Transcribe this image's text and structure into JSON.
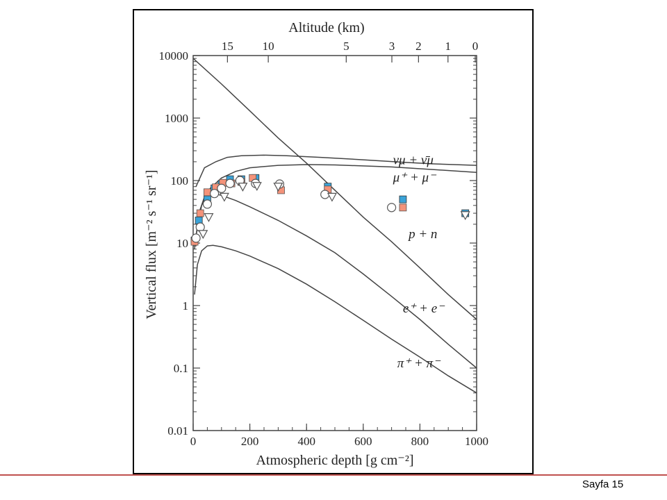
{
  "slide": {
    "page_label": "Sayfa 15",
    "colors": {
      "footer_line": "#c0504d",
      "blue_marker": "#3aa3d8",
      "salmon_marker": "#f4937a"
    }
  },
  "chart_data": {
    "type": "line",
    "title": "",
    "xlabel": "Atmospheric depth [g cm⁻²]",
    "x2label": "Altitude (km)",
    "ylabel": "Vertical flux [m⁻² s⁻¹ sr⁻¹]",
    "xlim": [
      0,
      1000
    ],
    "ylim": [
      0.01,
      10000
    ],
    "yscale": "log",
    "x_ticks": [
      0,
      200,
      400,
      600,
      800,
      1000
    ],
    "y_ticks": [
      {
        "v": 10000,
        "label": "10000"
      },
      {
        "v": 1000,
        "label": "1000"
      },
      {
        "v": 100,
        "label": "100"
      },
      {
        "v": 10,
        "label": "10"
      },
      {
        "v": 1,
        "label": "1"
      },
      {
        "v": 0.1,
        "label": "0.1"
      },
      {
        "v": 0.01,
        "label": "0.01"
      }
    ],
    "altitude_ticks": [
      {
        "label": "15",
        "depth": 121
      },
      {
        "label": "10",
        "depth": 265
      },
      {
        "label": "5",
        "depth": 540
      },
      {
        "label": "3",
        "depth": 701
      },
      {
        "label": "2",
        "depth": 795
      },
      {
        "label": "1",
        "depth": 899
      },
      {
        "label": "0",
        "depth": 1030
      }
    ],
    "series": [
      {
        "name": "νμ + ν̄μ",
        "x": [
          10,
          40,
          80,
          120,
          170,
          250,
          330,
          450,
          600,
          750,
          850,
          1000
        ],
        "y": [
          80,
          160,
          200,
          235,
          250,
          255,
          250,
          235,
          215,
          195,
          185,
          175
        ]
      },
      {
        "name": "μ⁺ + μ⁻",
        "x": [
          5,
          30,
          60,
          100,
          150,
          200,
          300,
          400,
          500,
          700,
          850,
          1000
        ],
        "y": [
          10,
          40,
          75,
          110,
          140,
          160,
          175,
          180,
          178,
          165,
          150,
          135
        ]
      },
      {
        "name": "p + n",
        "x": [
          0,
          100,
          200,
          300,
          400,
          500,
          600,
          700,
          800,
          900,
          1000
        ],
        "y": [
          9000,
          3500,
          1300,
          480,
          190,
          70,
          26,
          10.5,
          4,
          1.5,
          0.6
        ]
      },
      {
        "name": "e⁺ + e⁻",
        "x": [
          5,
          20,
          40,
          70,
          100,
          150,
          200,
          300,
          400,
          500,
          600,
          700,
          800,
          900,
          1000
        ],
        "y": [
          8,
          30,
          55,
          62,
          58,
          48,
          38,
          23,
          13,
          7,
          3.2,
          1.4,
          0.6,
          0.24,
          0.1
        ]
      },
      {
        "name": "π⁺ + π⁻",
        "x": [
          5,
          15,
          30,
          50,
          70,
          100,
          150,
          200,
          300,
          400,
          500,
          600,
          700,
          800,
          900,
          1000
        ],
        "y": [
          1.5,
          4.5,
          7.5,
          9,
          9.2,
          8.7,
          7.5,
          6.2,
          3.9,
          2.2,
          1.15,
          0.58,
          0.29,
          0.15,
          0.075,
          0.04
        ]
      }
    ],
    "labels": [
      {
        "text": "νμ + ν̄μ",
        "x": 705,
        "y": 212
      },
      {
        "text": "μ⁺ + μ⁻",
        "x": 705,
        "y": 112
      },
      {
        "text": "p + n",
        "x": 760,
        "y": 14
      },
      {
        "text": "e⁺ + e⁻",
        "x": 740,
        "y": 0.9
      },
      {
        "text": "π⁺ + π⁻",
        "x": 720,
        "y": 0.12
      }
    ],
    "markers": [
      {
        "type": "square-blue",
        "x": [
          5,
          20,
          50,
          75,
          100,
          130,
          170,
          220,
          475,
          740,
          960
        ],
        "y": [
          11,
          23,
          50,
          75,
          88,
          105,
          105,
          110,
          80,
          50,
          30
        ]
      },
      {
        "type": "square-salmon",
        "x": [
          5,
          25,
          50,
          80,
          105,
          135,
          170,
          210,
          310,
          475,
          740
        ],
        "y": [
          10.5,
          30,
          65,
          78,
          92,
          90,
          95,
          110,
          70,
          72,
          37
        ]
      },
      {
        "type": "circle-open",
        "x": [
          10,
          25,
          50,
          75,
          100,
          130,
          165,
          220,
          305,
          465,
          700
        ],
        "y": [
          12,
          18,
          42,
          62,
          75,
          90,
          100,
          90,
          88,
          60,
          37
        ]
      },
      {
        "type": "triangle-open",
        "x": [
          35,
          55,
          110,
          175,
          225,
          300,
          490,
          960
        ],
        "y": [
          14,
          26,
          55,
          80,
          82,
          80,
          55,
          28
        ]
      }
    ]
  }
}
